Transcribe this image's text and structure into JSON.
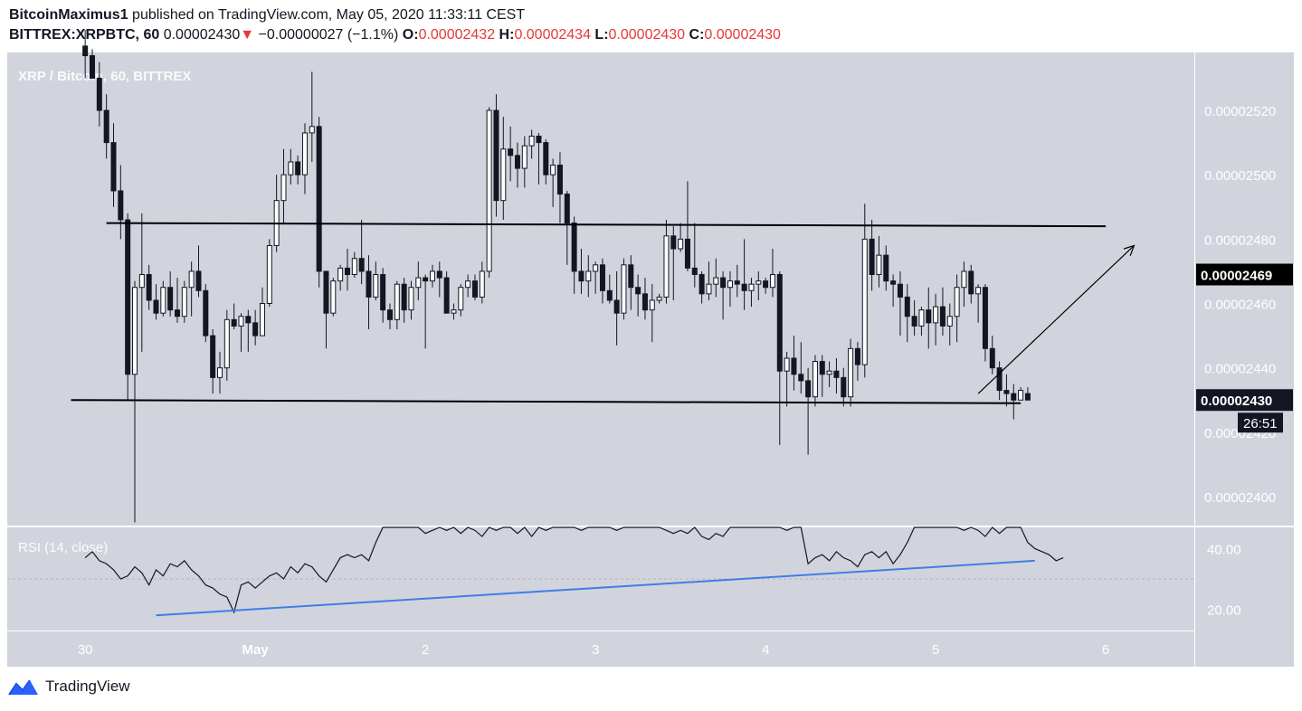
{
  "header": {
    "author": "BitcoinMaximus1",
    "published_text": "published on TradingView.com, May 05, 2020 11:33:11 CEST",
    "symbol": "BITTREX:XRPBTC, 60",
    "last": "0.00002430",
    "change": "−0.00000027 (−1.1%)",
    "o_label": "O:",
    "o_value": "0.00002432",
    "h_label": "H:",
    "h_value": "0.00002434",
    "l_label": "L:",
    "l_value": "0.00002430",
    "c_label": "C:",
    "c_value": "0.00002430"
  },
  "colors": {
    "pane_bg": "#d1d4dc",
    "candle": "#131722",
    "rsi_line": "#131722",
    "rsi_trend": "#3d7ee6",
    "brand": "#2962ff"
  },
  "chart_data": {
    "type": "candlestick",
    "title": "XRP / Bitcoin, 60, BITTREX",
    "price_axis": {
      "ticks": [
        "0.00002520",
        "0.00002500",
        "0.00002480",
        "0.00002460",
        "0.00002440",
        "0.00002420",
        "0.00002400"
      ],
      "tick_values": [
        2.52e-05,
        2.5e-05,
        2.48e-05,
        2.46e-05,
        2.44e-05,
        2.42e-05,
        2.4e-05
      ],
      "range": [
        2.391e-05,
        2.538e-05
      ]
    },
    "price_labels": [
      {
        "text": "0.00002469",
        "value": 2.469e-05
      },
      {
        "text": "0.00002430",
        "value": 2.43e-05
      },
      {
        "text": "26:51",
        "note": "countdown to bar close"
      }
    ],
    "time_axis": {
      "ticks": [
        "30",
        "May",
        "2",
        "3",
        "4",
        "5",
        "6"
      ],
      "tick_times": [
        0,
        24,
        48,
        72,
        96,
        120,
        144
      ],
      "range_hours": [
        -11,
        156.5
      ]
    },
    "candles_ohlc": [
      [
        2.54e-05,
        2.545e-05,
        2.53e-05,
        2.537e-05
      ],
      [
        2.537e-05,
        2.539e-05,
        2.53e-05,
        2.53e-05
      ],
      [
        2.53e-05,
        2.535e-05,
        2.515e-05,
        2.52e-05
      ],
      [
        2.52e-05,
        2.525e-05,
        2.505e-05,
        2.51e-05
      ],
      [
        2.51e-05,
        2.516e-05,
        2.49e-05,
        2.495e-05
      ],
      [
        2.495e-05,
        2.503e-05,
        2.48e-05,
        2.486e-05
      ],
      [
        2.486e-05,
        2.488e-05,
        2.43e-05,
        2.438e-05
      ],
      [
        2.438e-05,
        2.467e-05,
        2.392e-05,
        2.465e-05
      ],
      [
        2.465e-05,
        2.488e-05,
        2.445e-05,
        2.469e-05
      ],
      [
        2.469e-05,
        2.472e-05,
        2.458e-05,
        2.461e-05
      ],
      [
        2.461e-05,
        2.466e-05,
        2.455e-05,
        2.457e-05
      ],
      [
        2.457e-05,
        2.467e-05,
        2.456e-05,
        2.465e-05
      ],
      [
        2.465e-05,
        2.47e-05,
        2.456e-05,
        2.458e-05
      ],
      [
        2.458e-05,
        2.468e-05,
        2.454e-05,
        2.456e-05
      ],
      [
        2.456e-05,
        2.467e-05,
        2.454e-05,
        2.465e-05
      ],
      [
        2.465e-05,
        2.473e-05,
        2.456e-05,
        2.47e-05
      ],
      [
        2.47e-05,
        2.478e-05,
        2.462e-05,
        2.464e-05
      ],
      [
        2.464e-05,
        2.466e-05,
        2.448e-05,
        2.45e-05
      ],
      [
        2.45e-05,
        2.452e-05,
        2.432e-05,
        2.437e-05
      ],
      [
        2.437e-05,
        2.445e-05,
        2.432e-05,
        2.44e-05
      ],
      [
        2.44e-05,
        2.458e-05,
        2.436e-05,
        2.455e-05
      ],
      [
        2.455e-05,
        2.46e-05,
        2.452e-05,
        2.453e-05
      ],
      [
        2.453e-05,
        2.457e-05,
        2.445e-05,
        2.456e-05
      ],
      [
        2.456e-05,
        2.458e-05,
        2.445e-05,
        2.454e-05
      ],
      [
        2.454e-05,
        2.458e-05,
        2.447e-05,
        2.45e-05
      ],
      [
        2.45e-05,
        2.465e-05,
        2.45e-05,
        2.46e-05
      ],
      [
        2.46e-05,
        2.48e-05,
        2.459e-05,
        2.478e-05
      ],
      [
        2.478e-05,
        2.5e-05,
        2.476e-05,
        2.492e-05
      ],
      [
        2.492e-05,
        2.508e-05,
        2.485e-05,
        2.5e-05
      ],
      [
        2.5e-05,
        2.508e-05,
        2.497e-05,
        2.504e-05
      ],
      [
        2.504e-05,
        2.506e-05,
        2.497e-05,
        2.5e-05
      ],
      [
        2.5e-05,
        2.516e-05,
        2.494e-05,
        2.513e-05
      ],
      [
        2.513e-05,
        2.532e-05,
        2.504e-05,
        2.515e-05
      ],
      [
        2.515e-05,
        2.518e-05,
        2.465e-05,
        2.47e-05
      ],
      [
        2.47e-05,
        2.47e-05,
        2.446e-05,
        2.457e-05
      ],
      [
        2.457e-05,
        2.468e-05,
        2.456e-05,
        2.467e-05
      ],
      [
        2.467e-05,
        2.472e-05,
        2.464e-05,
        2.471e-05
      ],
      [
        2.471e-05,
        2.477e-05,
        2.464e-05,
        2.469e-05
      ],
      [
        2.469e-05,
        2.476e-05,
        2.468e-05,
        2.474e-05
      ],
      [
        2.474e-05,
        2.486e-05,
        2.466e-05,
        2.47e-05
      ],
      [
        2.47e-05,
        2.475e-05,
        2.452e-05,
        2.462e-05
      ],
      [
        2.462e-05,
        2.473e-05,
        2.461e-05,
        2.469e-05
      ],
      [
        2.469e-05,
        2.471e-05,
        2.454e-05,
        2.458e-05
      ],
      [
        2.458e-05,
        2.46e-05,
        2.452e-05,
        2.455e-05
      ],
      [
        2.455e-05,
        2.467e-05,
        2.452e-05,
        2.466e-05
      ],
      [
        2.466e-05,
        2.468e-05,
        2.454e-05,
        2.458e-05
      ],
      [
        2.458e-05,
        2.467e-05,
        2.455e-05,
        2.465e-05
      ],
      [
        2.465e-05,
        2.473e-05,
        2.461e-05,
        2.468e-05
      ],
      [
        2.468e-05,
        2.469e-05,
        2.446e-05,
        2.467e-05
      ],
      [
        2.467e-05,
        2.472e-05,
        2.465e-05,
        2.47e-05
      ],
      [
        2.47e-05,
        2.473e-05,
        2.462e-05,
        2.468e-05
      ],
      [
        2.468e-05,
        2.47e-05,
        2.458e-05,
        2.457e-05
      ],
      [
        2.457e-05,
        2.46e-05,
        2.455e-05,
        2.458e-05
      ],
      [
        2.458e-05,
        2.466e-05,
        2.456e-05,
        2.465e-05
      ],
      [
        2.465e-05,
        2.469e-05,
        2.462e-05,
        2.467e-05
      ],
      [
        2.467e-05,
        2.469e-05,
        2.461e-05,
        2.462e-05
      ],
      [
        2.462e-05,
        2.473e-05,
        2.46e-05,
        2.47e-05
      ],
      [
        2.47e-05,
        2.521e-05,
        2.468e-05,
        2.52e-05
      ],
      [
        2.52e-05,
        2.525e-05,
        2.487e-05,
        2.492e-05
      ],
      [
        2.492e-05,
        2.518e-05,
        2.486e-05,
        2.508e-05
      ],
      [
        2.508e-05,
        2.515e-05,
        2.498e-05,
        2.506e-05
      ],
      [
        2.506e-05,
        2.51e-05,
        2.496e-05,
        2.502e-05
      ],
      [
        2.502e-05,
        2.512e-05,
        2.496e-05,
        2.509e-05
      ],
      [
        2.509e-05,
        2.514e-05,
        2.505e-05,
        2.512e-05
      ],
      [
        2.512e-05,
        2.513e-05,
        2.497e-05,
        2.51e-05
      ],
      [
        2.51e-05,
        2.511e-05,
        2.497e-05,
        2.5e-05
      ],
      [
        2.5e-05,
        2.505e-05,
        2.49e-05,
        2.503e-05
      ],
      [
        2.503e-05,
        2.507e-05,
        2.485e-05,
        2.494e-05
      ],
      [
        2.494e-05,
        2.495e-05,
        2.472e-05,
        2.485e-05
      ],
      [
        2.485e-05,
        2.487e-05,
        2.463e-05,
        2.47e-05
      ],
      [
        2.47e-05,
        2.477e-05,
        2.463e-05,
        2.467e-05
      ],
      [
        2.467e-05,
        2.475e-05,
        2.462e-05,
        2.47e-05
      ],
      [
        2.47e-05,
        2.473e-05,
        2.463e-05,
        2.472e-05
      ],
      [
        2.472e-05,
        2.474e-05,
        2.46e-05,
        2.464e-05
      ],
      [
        2.464e-05,
        2.469e-05,
        2.46e-05,
        2.461e-05
      ],
      [
        2.461e-05,
        2.47e-05,
        2.447e-05,
        2.457e-05
      ],
      [
        2.457e-05,
        2.474e-05,
        2.455e-05,
        2.472e-05
      ],
      [
        2.472e-05,
        2.475e-05,
        2.458e-05,
        2.465e-05
      ],
      [
        2.465e-05,
        2.469e-05,
        2.456e-05,
        2.463e-05
      ],
      [
        2.463e-05,
        2.468e-05,
        2.455e-05,
        2.458e-05
      ],
      [
        2.458e-05,
        2.466e-05,
        2.448e-05,
        2.461e-05
      ],
      [
        2.461e-05,
        2.463e-05,
        2.46e-05,
        2.462e-05
      ],
      [
        2.462e-05,
        2.486e-05,
        2.46e-05,
        2.481e-05
      ],
      [
        2.481e-05,
        2.484e-05,
        2.461e-05,
        2.477e-05
      ],
      [
        2.477e-05,
        2.485e-05,
        2.476e-05,
        2.48e-05
      ],
      [
        2.48e-05,
        2.498e-05,
        2.47e-05,
        2.471e-05
      ],
      [
        2.471e-05,
        2.485e-05,
        2.465e-05,
        2.469e-05
      ],
      [
        2.469e-05,
        2.47e-05,
        2.46e-05,
        2.463e-05
      ],
      [
        2.463e-05,
        2.473e-05,
        2.461e-05,
        2.466e-05
      ],
      [
        2.466e-05,
        2.474e-05,
        2.462e-05,
        2.468e-05
      ],
      [
        2.468e-05,
        2.47e-05,
        2.455e-05,
        2.465e-05
      ],
      [
        2.465e-05,
        2.47e-05,
        2.459e-05,
        2.467e-05
      ],
      [
        2.467e-05,
        2.472e-05,
        2.462e-05,
        2.466e-05
      ],
      [
        2.466e-05,
        2.48e-05,
        2.458e-05,
        2.464e-05
      ],
      [
        2.464e-05,
        2.468e-05,
        2.459e-05,
        2.466e-05
      ],
      [
        2.466e-05,
        2.47e-05,
        2.461e-05,
        2.467e-05
      ],
      [
        2.467e-05,
        2.468e-05,
        2.463e-05,
        2.465e-05
      ],
      [
        2.465e-05,
        2.477e-05,
        2.462e-05,
        2.469e-05
      ],
      [
        2.469e-05,
        2.47e-05,
        2.416e-05,
        2.439e-05
      ],
      [
        2.439e-05,
        2.445e-05,
        2.428e-05,
        2.443e-05
      ],
      [
        2.443e-05,
        2.45e-05,
        2.433e-05,
        2.438e-05
      ],
      [
        2.438e-05,
        2.448e-05,
        2.432e-05,
        2.436e-05
      ],
      [
        2.436e-05,
        2.44e-05,
        2.413e-05,
        2.431e-05
      ],
      [
        2.431e-05,
        2.444e-05,
        2.428e-05,
        2.442e-05
      ],
      [
        2.442e-05,
        2.444e-05,
        2.431e-05,
        2.438e-05
      ],
      [
        2.438e-05,
        2.442e-05,
        2.434e-05,
        2.439e-05
      ],
      [
        2.439e-05,
        2.443e-05,
        2.432e-05,
        2.437e-05
      ],
      [
        2.437e-05,
        2.44e-05,
        2.428e-05,
        2.431e-05
      ],
      [
        2.431e-05,
        2.449e-05,
        2.428e-05,
        2.446e-05
      ],
      [
        2.446e-05,
        2.448e-05,
        2.436e-05,
        2.441e-05
      ],
      [
        2.441e-05,
        2.491e-05,
        2.437e-05,
        2.48e-05
      ],
      [
        2.48e-05,
        2.486e-05,
        2.464e-05,
        2.469e-05
      ],
      [
        2.469e-05,
        2.481e-05,
        2.465e-05,
        2.475e-05
      ],
      [
        2.475e-05,
        2.478e-05,
        2.464e-05,
        2.467e-05
      ],
      [
        2.467e-05,
        2.469e-05,
        2.459e-05,
        2.466e-05
      ],
      [
        2.466e-05,
        2.47e-05,
        2.45e-05,
        2.462e-05
      ],
      [
        2.462e-05,
        2.466e-05,
        2.448e-05,
        2.456e-05
      ],
      [
        2.456e-05,
        2.461e-05,
        2.45e-05,
        2.453e-05
      ],
      [
        2.453e-05,
        2.459e-05,
        2.45e-05,
        2.458e-05
      ],
      [
        2.458e-05,
        2.465e-05,
        2.446e-05,
        2.454e-05
      ],
      [
        2.454e-05,
        2.463e-05,
        2.447e-05,
        2.459e-05
      ],
      [
        2.459e-05,
        2.465e-05,
        2.45e-05,
        2.453e-05
      ],
      [
        2.453e-05,
        2.46e-05,
        2.447e-05,
        2.456e-05
      ],
      [
        2.456e-05,
        2.469e-05,
        2.448e-05,
        2.465e-05
      ],
      [
        2.465e-05,
        2.473e-05,
        2.459e-05,
        2.47e-05
      ],
      [
        2.47e-05,
        2.472e-05,
        2.46e-05,
        2.463e-05
      ],
      [
        2.463e-05,
        2.466e-05,
        2.454e-05,
        2.465e-05
      ],
      [
        2.465e-05,
        2.466e-05,
        2.442e-05,
        2.446e-05
      ],
      [
        2.446e-05,
        2.45e-05,
        2.438e-05,
        2.44e-05
      ],
      [
        2.44e-05,
        2.442e-05,
        2.43e-05,
        2.433e-05
      ],
      [
        2.433e-05,
        2.438e-05,
        2.428e-05,
        2.432e-05
      ],
      [
        2.432e-05,
        2.435e-05,
        2.424e-05,
        2.43e-05
      ],
      [
        2.43e-05,
        2.434e-05,
        2.43e-05,
        2.433e-05
      ],
      [
        2.432e-05,
        2.434e-05,
        2.43e-05,
        2.43e-05
      ]
    ],
    "trendlines_price": [
      {
        "name": "upper channel",
        "from": [
          3,
          2.485e-05
        ],
        "to": [
          144,
          2.484e-05
        ]
      },
      {
        "name": "lower channel",
        "from": [
          -2,
          2.43e-05
        ],
        "to": [
          132,
          2.429e-05
        ]
      },
      {
        "name": "projection arrow",
        "from": [
          126,
          2.432e-05
        ],
        "to": [
          148,
          2.478e-05
        ]
      }
    ],
    "rsi": {
      "label": "RSI (14, close)",
      "ticks": [
        "40.00",
        "20.00"
      ],
      "tick_values": [
        40,
        20
      ],
      "range": [
        13,
        47
      ],
      "dashed_level": 30,
      "values": [
        37,
        39,
        36,
        35,
        33,
        30,
        31,
        34,
        32,
        28,
        33,
        31,
        35,
        34,
        36,
        33,
        31,
        28,
        27,
        25,
        24,
        19,
        28,
        29,
        27,
        29,
        31,
        32,
        30,
        34,
        32,
        35,
        34,
        31,
        29,
        33,
        37,
        38,
        37,
        38,
        36,
        42,
        47,
        51,
        57,
        52,
        50,
        48,
        45,
        46,
        47,
        46,
        48,
        45,
        49,
        46,
        44,
        47,
        46,
        48,
        49,
        45,
        47,
        44,
        48,
        46,
        49,
        47,
        51,
        48,
        46,
        50,
        49,
        51,
        47,
        46,
        50,
        49,
        48,
        52,
        53,
        48,
        46,
        45,
        46,
        45,
        47,
        44,
        43,
        45,
        44,
        47,
        52,
        51,
        48,
        47,
        49,
        47,
        48,
        46,
        47,
        49,
        35,
        37,
        38,
        36,
        39,
        37,
        36,
        34,
        38,
        39,
        37,
        39,
        35,
        38,
        42,
        47,
        55,
        50,
        52,
        49,
        48,
        50,
        46,
        47,
        46,
        44,
        47,
        45,
        50,
        49,
        54,
        42,
        40,
        39,
        38,
        36,
        37
      ]
    },
    "rsi_trendline": {
      "from": [
        10,
        18
      ],
      "to": [
        134,
        36
      ]
    }
  },
  "footer": {
    "brand": "TradingView"
  }
}
